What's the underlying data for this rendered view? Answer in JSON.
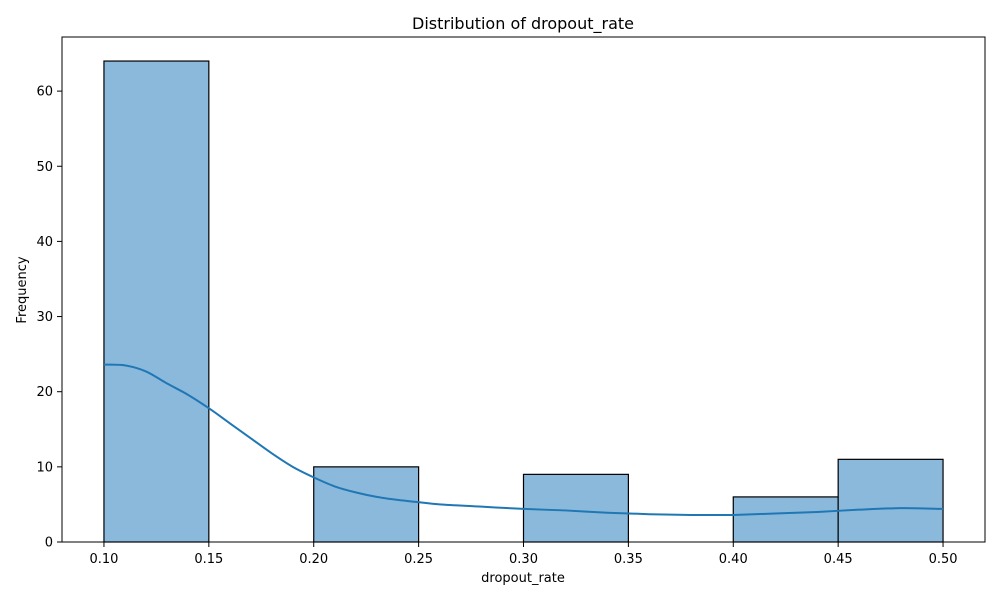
{
  "chart_data": {
    "type": "bar",
    "title": "Distribution of dropout_rate",
    "xlabel": "dropout_rate",
    "ylabel": "Frequency",
    "xlim": [
      0.08,
      0.52
    ],
    "ylim": [
      0,
      67.2
    ],
    "x_ticks": [
      0.1,
      0.15,
      0.2,
      0.25,
      0.3,
      0.35,
      0.4,
      0.45,
      0.5
    ],
    "x_tick_labels": [
      "0.10",
      "0.15",
      "0.20",
      "0.25",
      "0.30",
      "0.35",
      "0.40",
      "0.45",
      "0.50"
    ],
    "y_ticks": [
      0,
      10,
      20,
      30,
      40,
      50,
      60
    ],
    "y_tick_labels": [
      "0",
      "10",
      "20",
      "30",
      "40",
      "50",
      "60"
    ],
    "bins": [
      {
        "x0": 0.1,
        "x1": 0.15,
        "count": 64
      },
      {
        "x0": 0.15,
        "x1": 0.2,
        "count": 0
      },
      {
        "x0": 0.2,
        "x1": 0.25,
        "count": 10
      },
      {
        "x0": 0.25,
        "x1": 0.3,
        "count": 0
      },
      {
        "x0": 0.3,
        "x1": 0.35,
        "count": 9
      },
      {
        "x0": 0.35,
        "x1": 0.4,
        "count": 0
      },
      {
        "x0": 0.4,
        "x1": 0.45,
        "count": 6
      },
      {
        "x0": 0.45,
        "x1": 0.5,
        "count": 11
      }
    ],
    "kde_curve": {
      "x": [
        0.1,
        0.11,
        0.12,
        0.13,
        0.14,
        0.15,
        0.16,
        0.17,
        0.18,
        0.19,
        0.2,
        0.21,
        0.22,
        0.23,
        0.24,
        0.25,
        0.26,
        0.28,
        0.3,
        0.32,
        0.34,
        0.36,
        0.38,
        0.39,
        0.4,
        0.42,
        0.44,
        0.46,
        0.48,
        0.5
      ],
      "y": [
        23.6,
        23.5,
        22.7,
        21.1,
        19.6,
        17.8,
        15.8,
        13.8,
        11.8,
        10.0,
        8.6,
        7.4,
        6.6,
        6.0,
        5.6,
        5.3,
        5.0,
        4.7,
        4.4,
        4.2,
        3.9,
        3.7,
        3.6,
        3.6,
        3.6,
        3.8,
        4.0,
        4.3,
        4.5,
        4.4
      ]
    },
    "bar_color": "#8bb9dc",
    "bar_edge_color": "#000000",
    "line_color": "#1f77b4",
    "grid": false,
    "legend": "none"
  }
}
